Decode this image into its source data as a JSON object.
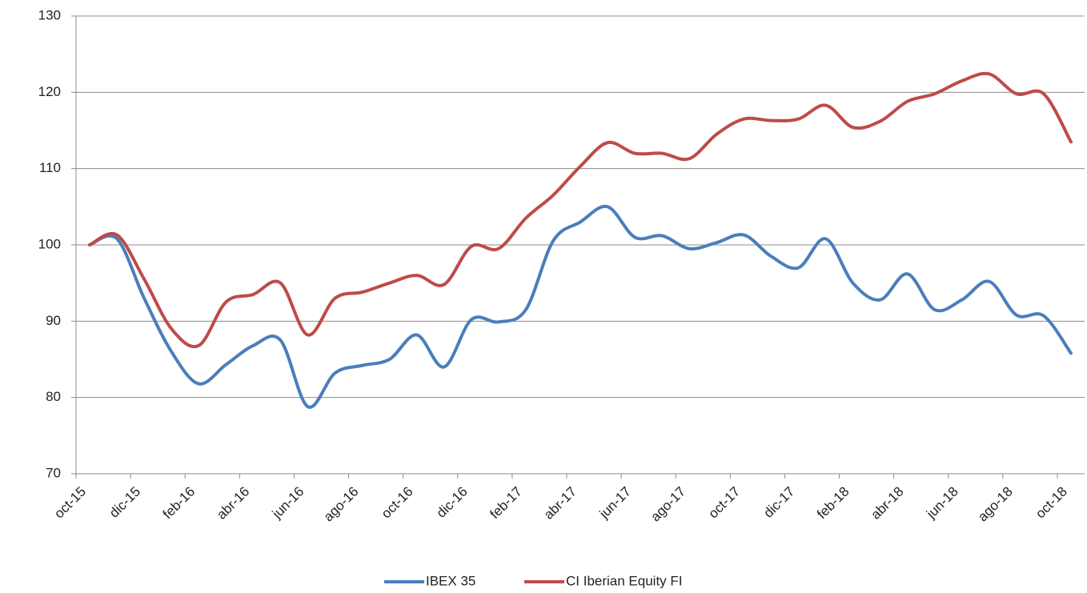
{
  "chart_data": {
    "type": "line",
    "categories": [
      "oct-15",
      null,
      "dic-15",
      null,
      "feb-16",
      null,
      "abr-16",
      null,
      "jun-16",
      null,
      "ago-16",
      null,
      "oct-16",
      null,
      "dic-16",
      null,
      "feb-17",
      null,
      "abr-17",
      null,
      "jun-17",
      null,
      "ago-17",
      null,
      "oct-17",
      null,
      "dic-17",
      null,
      "feb-18",
      null,
      "abr-18",
      null,
      "jun-18",
      null,
      "ago-18",
      null,
      "oct-18"
    ],
    "series": [
      {
        "name": "IBEX 35",
        "color": "#4a7ebb",
        "values": [
          100,
          100.8,
          93,
          86,
          81.8,
          84.3,
          86.8,
          87.5,
          78.8,
          83.2,
          84.2,
          85,
          88.2,
          84,
          90.2,
          89.9,
          91.5,
          100.5,
          103,
          105,
          101,
          101.2,
          99.5,
          100.3,
          101.3,
          98.5,
          97,
          100.8,
          95,
          92.8,
          96.2,
          91.5,
          92.8,
          95.2,
          90.8,
          90.7,
          85.8
        ]
      },
      {
        "name": "CI Iberian Equity FI",
        "color": "#be4b48",
        "values": [
          100,
          101.3,
          95.5,
          89,
          86.8,
          92.5,
          93.5,
          95,
          88.2,
          93,
          93.8,
          95,
          96,
          94.8,
          99.8,
          99.5,
          103.5,
          106.5,
          110.3,
          113.4,
          112,
          112,
          111.3,
          114.5,
          116.5,
          116.3,
          116.5,
          118.3,
          115.4,
          116.2,
          118.8,
          119.8,
          121.5,
          122.4,
          119.8,
          119.8,
          113.5
        ]
      }
    ],
    "ylim": [
      70,
      130
    ],
    "yticks": [
      70,
      80,
      90,
      100,
      110,
      120,
      130
    ],
    "grid": true,
    "legend": "bottom"
  }
}
